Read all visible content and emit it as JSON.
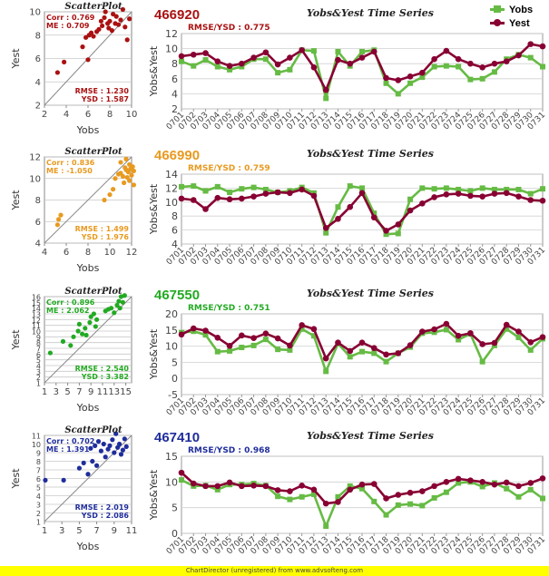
{
  "legend": [
    {
      "name": "Yobs",
      "color": "#66bb44",
      "marker": "square"
    },
    {
      "name": "Yest",
      "color": "#880033",
      "marker": "circle"
    }
  ],
  "footer": "ChartDirector (unregistered) from www.advsofteng.com",
  "chart_data": [
    {
      "type": "scatter",
      "title": "ScatterPlot",
      "xlabel": "Yobs",
      "ylabel": "Yest",
      "xlim": [
        2,
        10
      ],
      "ylim": [
        2,
        10
      ],
      "xticks": [
        2,
        4,
        6,
        8,
        10
      ],
      "yticks": [
        2,
        4,
        6,
        8,
        10
      ],
      "stats_top": [
        "Corr : 0.769",
        "ME : 0.709"
      ],
      "stats_bottom": [
        "RMSE : 1.230",
        "YSD : 1.587"
      ],
      "color": "#aa1111",
      "points": [
        [
          3.2,
          4.8
        ],
        [
          3.8,
          5.7
        ],
        [
          5.5,
          7.0
        ],
        [
          5.8,
          7.8
        ],
        [
          6.0,
          5.9
        ],
        [
          6.1,
          8.0
        ],
        [
          6.3,
          8.2
        ],
        [
          6.5,
          7.9
        ],
        [
          6.8,
          8.3
        ],
        [
          7.0,
          8.5
        ],
        [
          7.2,
          9.2
        ],
        [
          7.3,
          8.8
        ],
        [
          7.5,
          9.5
        ],
        [
          7.6,
          10.0
        ],
        [
          7.8,
          9.0
        ],
        [
          7.9,
          8.6
        ],
        [
          8.0,
          9.2
        ],
        [
          8.2,
          8.4
        ],
        [
          8.3,
          9.8
        ],
        [
          8.5,
          9.0
        ],
        [
          8.6,
          9.6
        ],
        [
          8.8,
          8.9
        ],
        [
          9.0,
          9.3
        ],
        [
          9.2,
          10.2
        ],
        [
          9.4,
          8.7
        ],
        [
          9.6,
          7.6
        ],
        [
          9.8,
          9.4
        ]
      ]
    },
    {
      "type": "scatter",
      "title": "ScatterPlot",
      "xlabel": "Yobs",
      "ylabel": "Yest",
      "xlim": [
        4,
        12
      ],
      "ylim": [
        4,
        12
      ],
      "xticks": [
        4,
        6,
        8,
        10,
        12
      ],
      "yticks": [
        4,
        6,
        8,
        10,
        12
      ],
      "stats_top": [
        "Corr : 0.836",
        "ME : -1.050"
      ],
      "stats_bottom": [
        "RMSE : 1.499",
        "YSD : 1.976"
      ],
      "color": "#e89a20",
      "points": [
        [
          5.2,
          5.7
        ],
        [
          5.3,
          6.2
        ],
        [
          5.5,
          6.6
        ],
        [
          9.5,
          8.0
        ],
        [
          10.0,
          8.5
        ],
        [
          10.3,
          9.0
        ],
        [
          10.5,
          10.0
        ],
        [
          10.8,
          10.4
        ],
        [
          11.0,
          10.5
        ],
        [
          11.0,
          11.5
        ],
        [
          11.2,
          10.2
        ],
        [
          11.3,
          9.6
        ],
        [
          11.4,
          11.0
        ],
        [
          11.5,
          10.8
        ],
        [
          11.5,
          11.8
        ],
        [
          11.6,
          10.1
        ],
        [
          11.7,
          10.6
        ],
        [
          11.8,
          11.3
        ],
        [
          11.8,
          9.8
        ],
        [
          11.9,
          10.9
        ],
        [
          12.0,
          10.3
        ],
        [
          12.1,
          11.1
        ],
        [
          12.2,
          10.7
        ],
        [
          12.2,
          9.4
        ]
      ]
    },
    {
      "type": "scatter",
      "title": "ScatterPlot",
      "xlabel": "Yobs",
      "ylabel": "Yest",
      "xlim": [
        1,
        16
      ],
      "ylim": [
        1,
        16
      ],
      "xticks": [
        1,
        3,
        5,
        7,
        9,
        11,
        13,
        15
      ],
      "yticks": [
        1,
        2,
        3,
        4,
        5,
        6,
        7,
        8,
        9,
        10,
        11,
        12,
        13,
        14,
        15,
        16
      ],
      "stats_top": [
        "Corr : 0.896",
        "ME : 2.062"
      ],
      "stats_bottom": [
        "RMSE : 2.540",
        "YSD : 3.382"
      ],
      "color": "#22aa22",
      "points": [
        [
          2.0,
          6.2
        ],
        [
          4.2,
          8.2
        ],
        [
          5.5,
          7.5
        ],
        [
          6.0,
          9.0
        ],
        [
          6.8,
          10.0
        ],
        [
          7.0,
          11.2
        ],
        [
          7.5,
          9.5
        ],
        [
          8.0,
          10.5
        ],
        [
          8.2,
          9.3
        ],
        [
          8.8,
          11.5
        ],
        [
          9.0,
          12.5
        ],
        [
          9.5,
          13.0
        ],
        [
          9.8,
          10.8
        ],
        [
          10.0,
          12.0
        ],
        [
          11.5,
          13.5
        ],
        [
          12.0,
          13.8
        ],
        [
          12.5,
          14.0
        ],
        [
          13.0,
          13.2
        ],
        [
          13.5,
          14.5
        ],
        [
          13.8,
          15.2
        ],
        [
          14.0,
          14.0
        ],
        [
          14.2,
          16.0
        ],
        [
          14.5,
          15.0
        ],
        [
          14.8,
          16.2
        ]
      ]
    },
    {
      "type": "scatter",
      "title": "ScatterPlot",
      "xlabel": "Yobs",
      "ylabel": "Yest",
      "xlim": [
        1,
        11
      ],
      "ylim": [
        1,
        11
      ],
      "xticks": [
        1,
        3,
        5,
        7,
        9,
        11
      ],
      "yticks": [
        1,
        2,
        3,
        4,
        5,
        6,
        7,
        8,
        9,
        10,
        11
      ],
      "stats_top": [
        "Corr : 0.702",
        "ME : 1.391"
      ],
      "stats_bottom": [
        "RMSE : 2.019",
        "YSD : 2.086"
      ],
      "color": "#1f2d9c",
      "points": [
        [
          1.1,
          5.8
        ],
        [
          3.2,
          5.8
        ],
        [
          5.0,
          7.2
        ],
        [
          5.5,
          7.8
        ],
        [
          6.0,
          6.5
        ],
        [
          6.3,
          9.5
        ],
        [
          6.5,
          8.0
        ],
        [
          6.8,
          9.8
        ],
        [
          7.0,
          7.5
        ],
        [
          7.2,
          10.3
        ],
        [
          7.5,
          9.2
        ],
        [
          7.8,
          10.0
        ],
        [
          8.0,
          8.5
        ],
        [
          8.3,
          9.4
        ],
        [
          8.5,
          9.8
        ],
        [
          8.8,
          10.5
        ],
        [
          9.0,
          9.0
        ],
        [
          9.2,
          11.2
        ],
        [
          9.4,
          9.6
        ],
        [
          9.6,
          10.0
        ],
        [
          9.8,
          8.8
        ],
        [
          10.0,
          9.3
        ],
        [
          10.2,
          10.6
        ],
        [
          10.4,
          9.7
        ]
      ]
    },
    {
      "type": "line",
      "station": "466920",
      "station_color": "#aa1111",
      "title": "Yobs&Yest Time Series",
      "ylabel": "Yobs&Yest",
      "ratio": "RMSE/YSD : 0.775",
      "ylim": [
        2,
        12
      ],
      "yticks": [
        2,
        4,
        6,
        8,
        10,
        12
      ],
      "categories": [
        "0701",
        "0702",
        "0703",
        "0704",
        "0705",
        "0706",
        "0707",
        "0708",
        "0709",
        "0710",
        "0711",
        "0712",
        "0713",
        "0714",
        "0715",
        "0716",
        "0717",
        "0718",
        "0719",
        "0720",
        "0721",
        "0722",
        "0723",
        "0724",
        "0725",
        "0726",
        "0727",
        "0728",
        "0729",
        "0730",
        "0731"
      ],
      "series": [
        {
          "name": "Yobs",
          "values": [
            8.3,
            7.7,
            8.5,
            7.6,
            7.2,
            7.6,
            8.6,
            8.6,
            6.8,
            7.2,
            9.8,
            9.7,
            3.4,
            9.6,
            7.7,
            9.6,
            9.8,
            5.4,
            4.0,
            5.4,
            6.2,
            7.6,
            7.7,
            7.6,
            5.9,
            6.0,
            6.9,
            8.6,
            9.2,
            8.8,
            7.6
          ]
        },
        {
          "name": "Yest",
          "values": [
            9.0,
            9.2,
            9.4,
            8.3,
            7.7,
            8.0,
            8.8,
            9.5,
            7.9,
            8.8,
            9.8,
            7.5,
            4.5,
            8.5,
            8.0,
            8.8,
            9.6,
            6.1,
            5.8,
            6.3,
            6.8,
            8.6,
            9.7,
            8.6,
            8.0,
            7.5,
            8.0,
            8.3,
            9.1,
            10.6,
            10.3
          ]
        }
      ]
    },
    {
      "type": "line",
      "station": "466990",
      "station_color": "#e89a20",
      "title": "Yobs&Yest Time Series",
      "ylabel": "Yobs&Yest",
      "ratio": "RMSE/YSD : 0.759",
      "ylim": [
        4,
        14
      ],
      "yticks": [
        4,
        6,
        8,
        10,
        12,
        14
      ],
      "categories": [
        "0701",
        "0702",
        "0703",
        "0704",
        "0705",
        "0706",
        "0707",
        "0708",
        "0709",
        "0710",
        "0711",
        "0712",
        "0713",
        "0714",
        "0715",
        "0716",
        "0717",
        "0718",
        "0719",
        "0720",
        "0721",
        "0722",
        "0723",
        "0724",
        "0725",
        "0726",
        "0727",
        "0728",
        "0729",
        "0730",
        "0731"
      ],
      "series": [
        {
          "name": "Yobs",
          "values": [
            12.2,
            12.3,
            11.6,
            12.2,
            11.4,
            11.9,
            12.1,
            11.8,
            11.4,
            11.6,
            12.1,
            11.3,
            5.6,
            9.3,
            12.3,
            12.0,
            8.4,
            5.4,
            5.5,
            10.4,
            12.0,
            11.9,
            12.0,
            11.8,
            11.6,
            12.0,
            11.8,
            11.8,
            11.8,
            11.2,
            11.9
          ]
        },
        {
          "name": "Yest",
          "values": [
            10.5,
            10.3,
            9.0,
            10.6,
            10.4,
            10.5,
            10.8,
            11.2,
            11.4,
            11.3,
            11.8,
            10.9,
            6.3,
            7.6,
            9.3,
            11.3,
            7.8,
            5.9,
            6.8,
            8.8,
            9.8,
            10.7,
            11.1,
            11.2,
            10.9,
            10.8,
            11.2,
            11.3,
            10.8,
            10.3,
            10.2
          ]
        }
      ]
    },
    {
      "type": "line",
      "station": "467550",
      "station_color": "#22aa22",
      "title": "Yobs&Yest Time Series",
      "ylabel": "Yobs&Yest",
      "ratio": "RMSE/YSD : 0.751",
      "ylim": [
        -5,
        20
      ],
      "yticks": [
        -5,
        0,
        5,
        10,
        15,
        20
      ],
      "categories": [
        "0701",
        "0702",
        "0703",
        "0704",
        "0705",
        "0706",
        "0707",
        "0708",
        "0709",
        "0710",
        "0711",
        "0712",
        "0713",
        "0714",
        "0715",
        "0716",
        "0717",
        "0718",
        "0719",
        "0720",
        "0721",
        "0722",
        "0723",
        "0724",
        "0725",
        "0726",
        "0727",
        "0728",
        "0729",
        "0730",
        "0731"
      ],
      "series": [
        {
          "name": "Yobs",
          "values": [
            14.2,
            14.6,
            13.5,
            8.3,
            8.5,
            9.6,
            10.2,
            12.1,
            9.0,
            8.8,
            15.3,
            13.2,
            2.2,
            10.8,
            6.7,
            8.3,
            7.8,
            5.2,
            7.8,
            9.7,
            14.0,
            14.3,
            15.1,
            12.0,
            13.8,
            5.2,
            10.2,
            15.3,
            12.7,
            8.8,
            12.3
          ]
        },
        {
          "name": "Yest",
          "values": [
            13.6,
            15.5,
            14.8,
            12.6,
            10.1,
            13.3,
            12.5,
            13.9,
            12.4,
            10.2,
            16.5,
            15.3,
            6.2,
            11.1,
            8.5,
            11.1,
            9.4,
            7.4,
            7.8,
            10.3,
            14.5,
            15.2,
            16.9,
            13.2,
            14.0,
            10.6,
            11.0,
            16.6,
            14.5,
            11.2,
            12.8
          ]
        }
      ]
    },
    {
      "type": "line",
      "station": "467410",
      "station_color": "#1f2d9c",
      "title": "Yobs&Yest Time Series",
      "ylabel": "Yobs&Yest",
      "ratio": "RMSE/YSD : 0.968",
      "ylim": [
        0,
        15
      ],
      "yticks": [
        0,
        5,
        10,
        15
      ],
      "categories": [
        "0701",
        "0702",
        "0703",
        "0704",
        "0705",
        "0706",
        "0707",
        "0708",
        "0709",
        "0710",
        "0711",
        "0712",
        "0713",
        "0714",
        "0715",
        "0716",
        "0717",
        "0718",
        "0719",
        "0720",
        "0721",
        "0722",
        "0723",
        "0724",
        "0725",
        "0726",
        "0727",
        "0728",
        "0729",
        "0730",
        "0731"
      ],
      "series": [
        {
          "name": "Yobs",
          "values": [
            10.4,
            9.2,
            9.3,
            8.5,
            9.5,
            9.5,
            9.7,
            9.3,
            7.2,
            6.6,
            7.1,
            7.6,
            1.4,
            7.1,
            9.2,
            8.7,
            6.2,
            3.6,
            5.5,
            5.7,
            5.4,
            6.9,
            8.0,
            9.8,
            10.0,
            9.1,
            9.8,
            8.7,
            7.1,
            8.5,
            6.8
          ]
        },
        {
          "name": "Yest",
          "values": [
            11.8,
            9.7,
            9.2,
            9.2,
            9.9,
            9.2,
            9.3,
            9.2,
            8.4,
            8.2,
            9.3,
            8.5,
            5.8,
            6.1,
            8.5,
            9.5,
            9.6,
            6.8,
            7.5,
            7.9,
            8.2,
            9.2,
            10.0,
            10.6,
            10.3,
            10.0,
            9.5,
            9.9,
            9.2,
            9.8,
            10.7
          ]
        }
      ]
    }
  ]
}
